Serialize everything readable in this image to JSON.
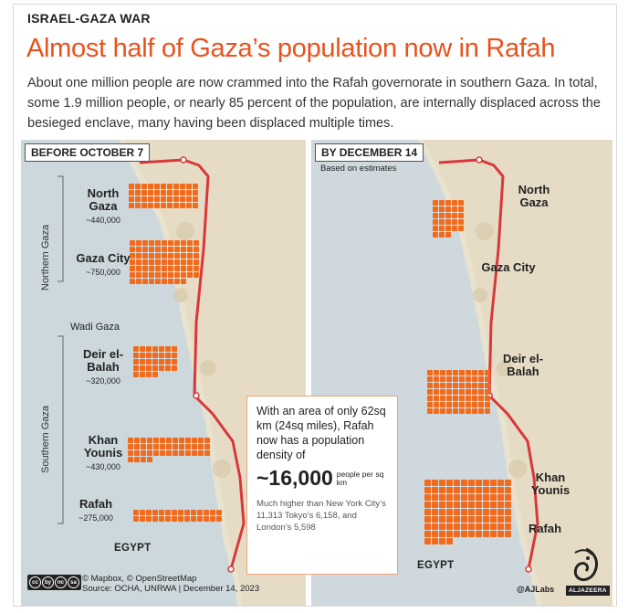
{
  "header": {
    "kicker": "ISRAEL-GAZA WAR",
    "headline": "Almost half of Gaza’s population now in Rafah",
    "intro": "About one million people are now crammed into the Rafah governorate in southern Gaza. In total, some 1.9 million people, or nearly 85 percent of the population, are internally displaced across the besieged enclave, many having been displaced multiple times."
  },
  "colors": {
    "accent": "#e8521c",
    "people_square": "#f26a1b",
    "border_line": "#d9383b",
    "land": "#e8dcc4",
    "sea": "#cfd9dd"
  },
  "left_map": {
    "tag": "BEFORE OCTOBER 7",
    "northern_label": "Northern Gaza",
    "southern_label": "Southern Gaza",
    "wadi": "Wadi Gaza",
    "egypt": "EGYPT",
    "regions": [
      {
        "name": "North Gaza",
        "population": "~440,000",
        "squares": 44
      },
      {
        "name": "Gaza City",
        "population": "~750,000",
        "squares": 75
      },
      {
        "name": "Deir el-Balah",
        "population": "~320,000",
        "squares": 32
      },
      {
        "name": "Khan Younis",
        "population": "~430,000",
        "squares": 43
      },
      {
        "name": "Rafah",
        "population": "~275,000",
        "squares": 28
      }
    ]
  },
  "right_map": {
    "tag": "BY DECEMBER 14",
    "note": "Based on estimates",
    "egypt": "EGYPT",
    "regions": [
      {
        "name": "North Gaza",
        "squares": 0
      },
      {
        "name": "Gaza City",
        "squares": 28
      },
      {
        "name": "Deir el-Balah",
        "squares": 70
      },
      {
        "name": "Khan Younis",
        "squares": 0
      },
      {
        "name": "Rafah",
        "squares": 100
      }
    ]
  },
  "callout": {
    "text": "With an area of only 62sq km (24sq miles), Rafah now has a population density of",
    "value": "~16,000",
    "unit": "people per sq km",
    "comparison": "Much higher than New York City’s 11,313 Tokyo’s 6,158, and London’s 5,598"
  },
  "footer": {
    "credits": "© Mapbox, © OpenStreetMap",
    "source": "Source: OCHA, UNRWA | December 14, 2023",
    "handle": "@AJLabs",
    "brand": "ALJAZEERA",
    "cc_icons": [
      "cc",
      "by",
      "nc",
      "sa"
    ]
  }
}
